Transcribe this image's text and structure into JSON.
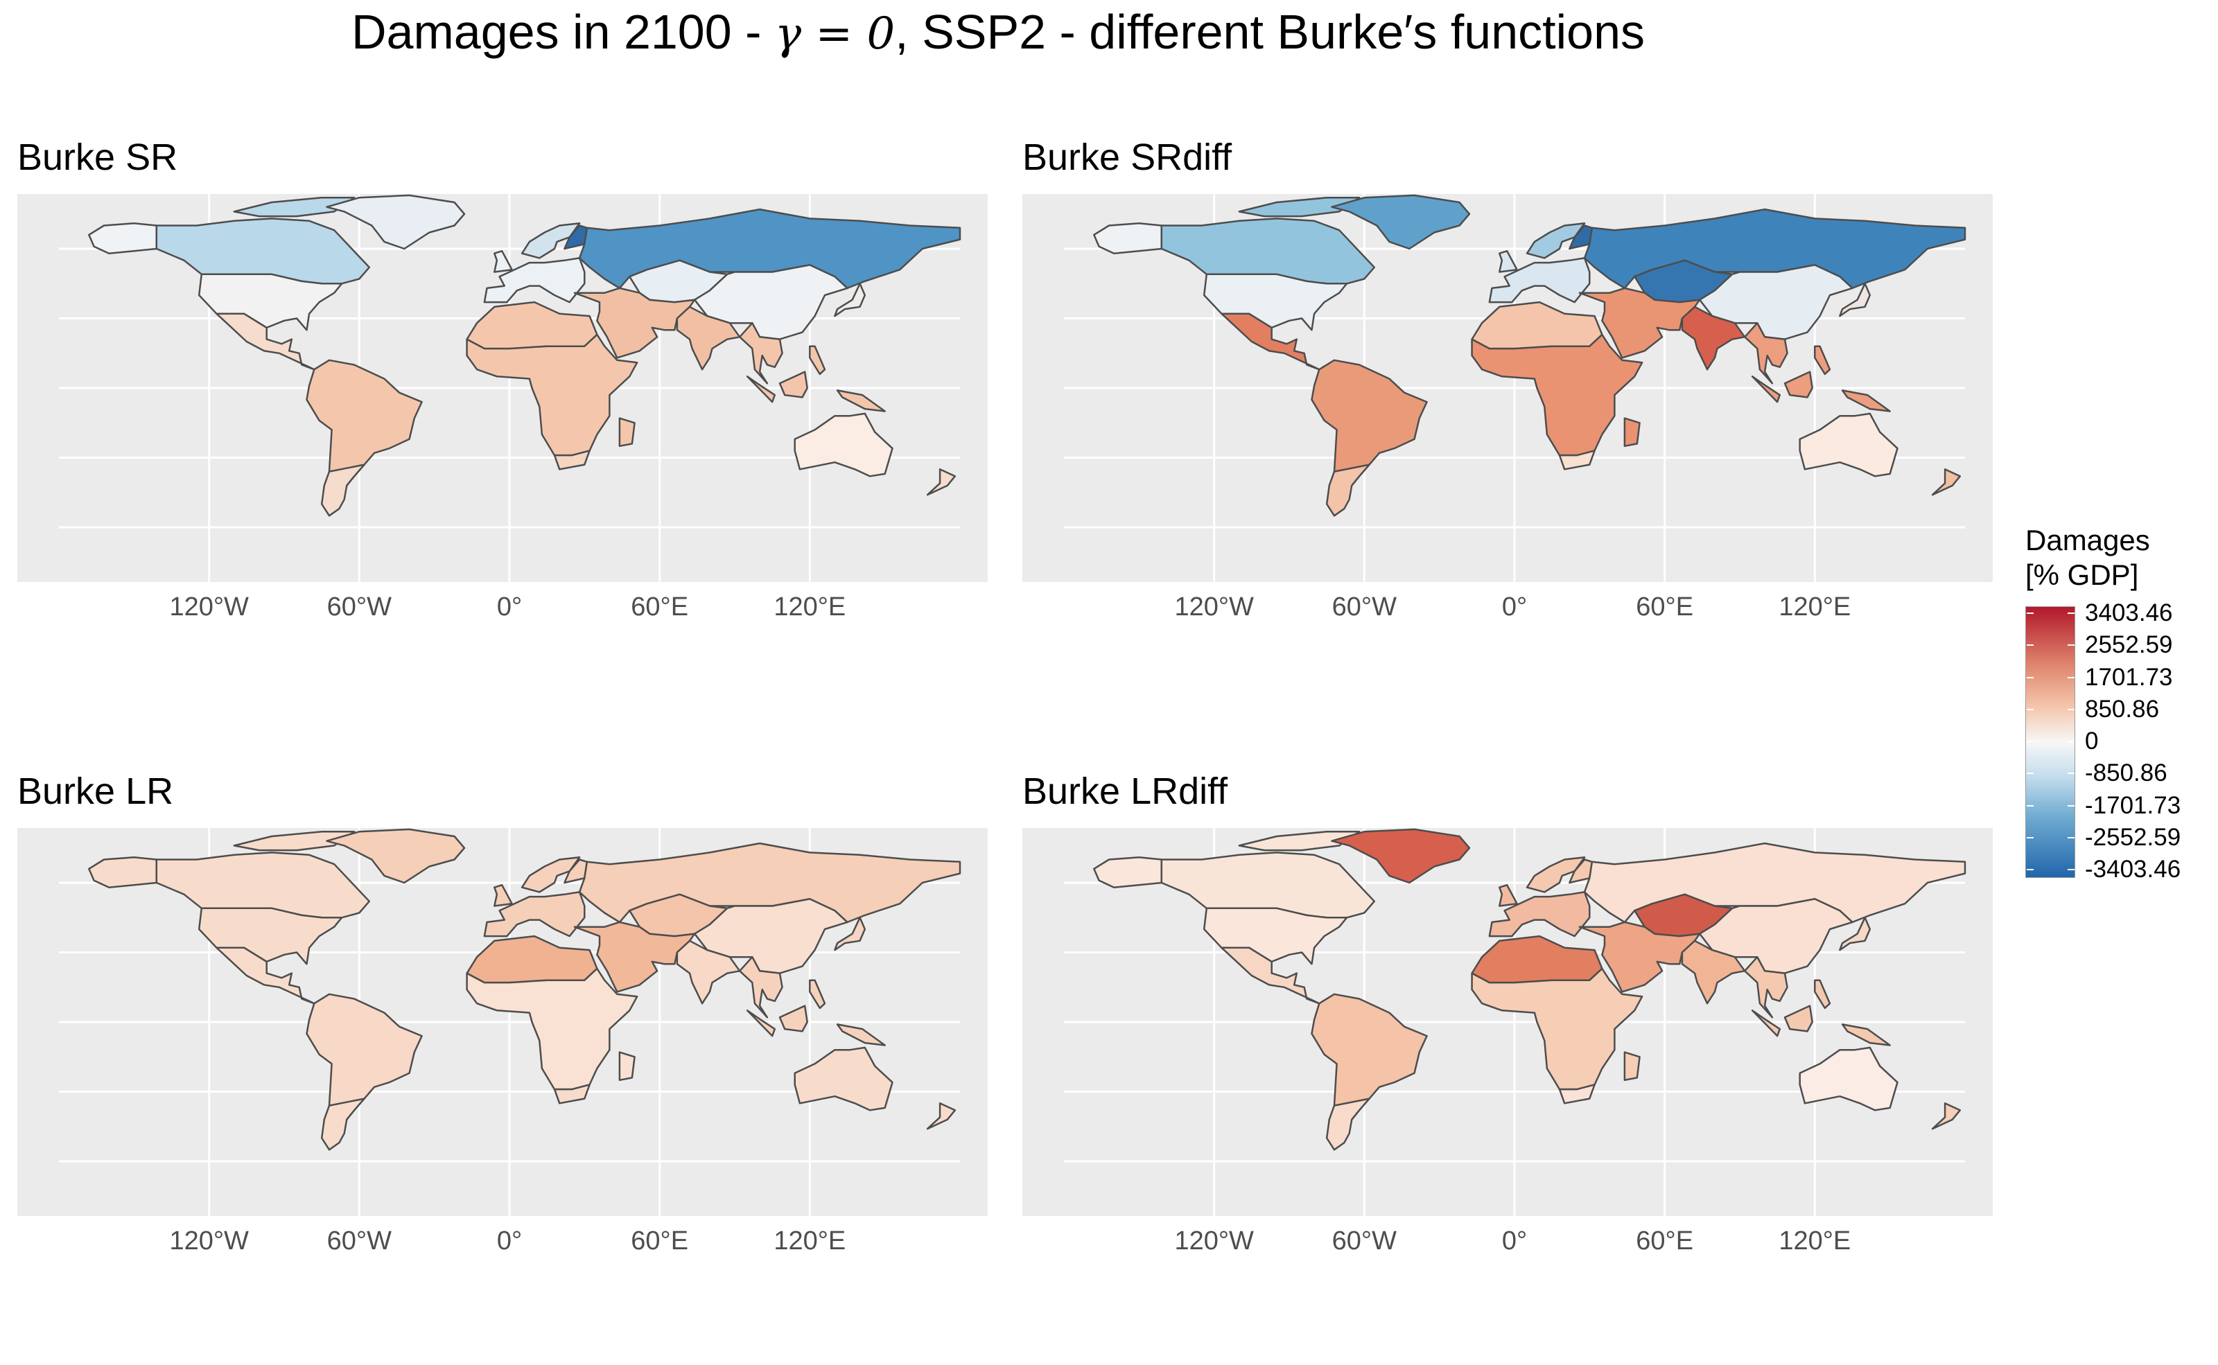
{
  "title": {
    "prefix": "Damages in 2100 - ",
    "gamma": "γ = 0",
    "suffix": ", SSP2 - different Burke′s functions"
  },
  "chart_data": {
    "type": "choropleth",
    "x_ticks": [
      "120°W",
      "60°W",
      "0°",
      "60°E",
      "120°E"
    ],
    "legend": {
      "title_line1": "Damages",
      "title_line2": "[% GDP]",
      "breaks": [
        "3403.46",
        "2552.59",
        "1701.73",
        "850.86",
        "0",
        "-850.86",
        "-1701.73",
        "-2552.59",
        "-3403.46"
      ],
      "colors": {
        "high": "#b2182b",
        "mid": "#f7f7f7",
        "low": "#2166ac"
      }
    },
    "panels": [
      {
        "title": "Burke SR",
        "regions": {
          "canada": "#b9d8ea",
          "usa": "#f2f2f2",
          "alaska": "#f0f3f5",
          "mexico_ca": "#f6dccd",
          "south_america": "#f4c7ad",
          "southern_cone": "#f6dccd",
          "greenland": "#e8eef3",
          "europe": "#ecf1f5",
          "scandinavia": "#d3e3ee",
          "finland": "#2f6ba8",
          "russia": "#4f94c5",
          "central_asia": "#e7eff5",
          "china": "#eef2f5",
          "middle_east": "#f1c0a4",
          "north_africa": "#f4c7ad",
          "africa": "#f4c7ad",
          "south_africa": "#f6d5c1",
          "india": "#f1c0a4",
          "se_asia": "#f3c6ac",
          "australia": "#fbece4",
          "nz": "#f6dccd",
          "japan": "#f0ecea"
        }
      },
      {
        "title": "Burke SRdiff",
        "regions": {
          "canada": "#93c4de",
          "usa": "#eaf0f4",
          "alaska": "#eef2f5",
          "mexico_ca": "#e27f61",
          "south_america": "#e99b79",
          "southern_cone": "#f3c4aa",
          "greenland": "#5fa1cb",
          "europe": "#dae7f0",
          "scandinavia": "#a2cbe2",
          "finland": "#2f6ba8",
          "russia": "#3f83bb",
          "central_asia": "#3576b0",
          "china": "#e6edf2",
          "middle_east": "#e99473",
          "north_africa": "#f5c5ab",
          "africa": "#e99373",
          "south_africa": "#f8e0d2",
          "india": "#d6604d",
          "se_asia": "#ec9e7f",
          "australia": "#faeae0",
          "nz": "#f1bfa2",
          "japan": "#f0e6e1"
        }
      },
      {
        "title": "Burke LR",
        "regions": {
          "canada": "#f8dccb",
          "usa": "#f8dccb",
          "alaska": "#f8dccb",
          "mexico_ca": "#f8dccb",
          "south_america": "#f8d8c6",
          "southern_cone": "#f8dccb",
          "greenland": "#f6cfb8",
          "europe": "#f6cfb8",
          "scandinavia": "#f6d2bd",
          "finland": "#f6cfb8",
          "russia": "#f6cfb8",
          "central_asia": "#f4c5aa",
          "china": "#f8dfd0",
          "middle_east": "#f1b89a",
          "north_africa": "#f0b291",
          "africa": "#f9e1d3",
          "south_africa": "#f8dccb",
          "india": "#f8d8c6",
          "se_asia": "#f6d2bd",
          "australia": "#f8dccb",
          "nz": "#f8dccb",
          "japan": "#f6d5c2"
        }
      },
      {
        "title": "Burke LRdiff",
        "regions": {
          "canada": "#f9e4d8",
          "usa": "#fae6db",
          "alaska": "#fae6db",
          "mexico_ca": "#f7d6c3",
          "south_america": "#f4c3a8",
          "southern_cone": "#f8dbca",
          "greenland": "#d6604d",
          "europe": "#f2baa0",
          "scandinavia": "#f5c9b0",
          "finland": "#f5c9b0",
          "russia": "#f9e0d2",
          "central_asia": "#d15b4a",
          "china": "#f9e0d2",
          "middle_east": "#eda585",
          "north_africa": "#e27f61",
          "africa": "#f6cdb5",
          "south_africa": "#f9e2d6",
          "india": "#f1b596",
          "se_asia": "#f5c9b0",
          "australia": "#fbece5",
          "nz": "#f6cfb8",
          "japan": "#f7d8c7"
        }
      }
    ]
  }
}
